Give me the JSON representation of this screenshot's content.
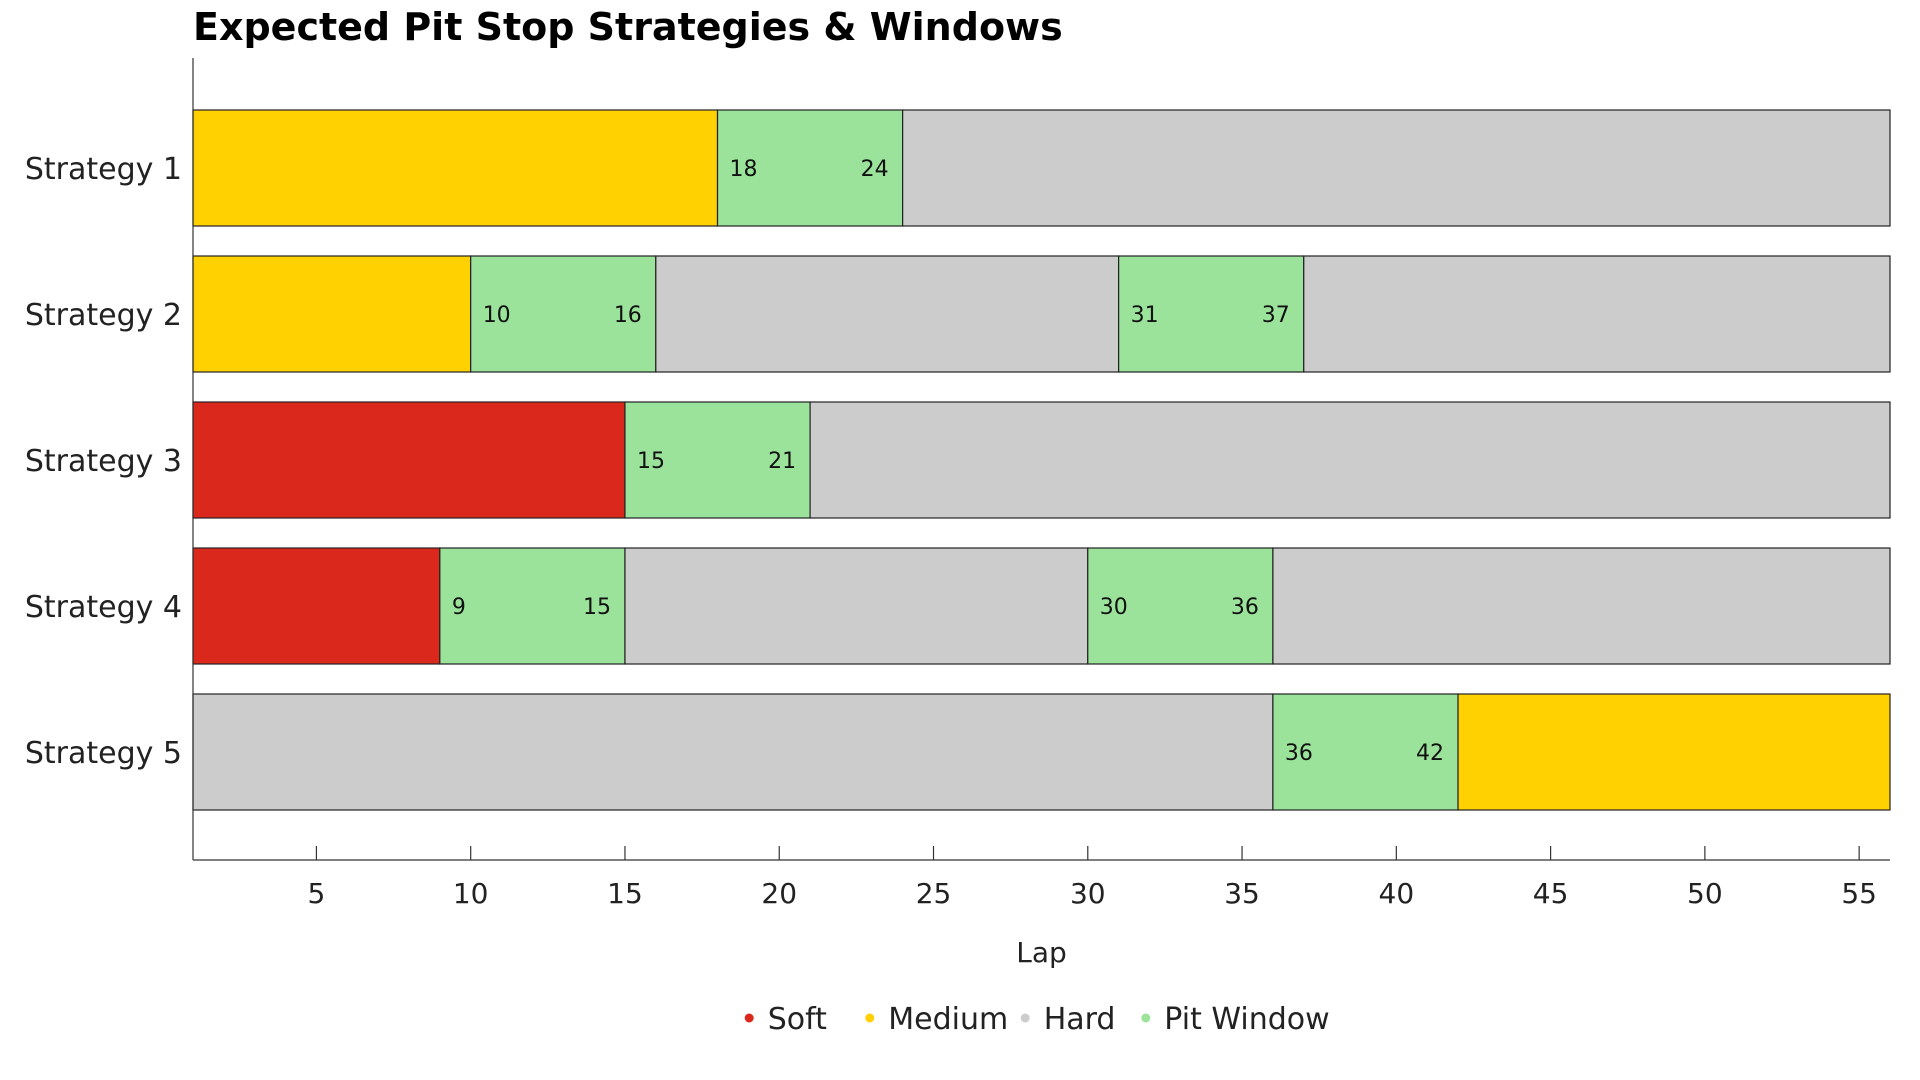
{
  "chart_data": {
    "type": "bar",
    "orientation": "horizontal-stacked-gantt",
    "title": "Expected Pit Stop Strategies & Windows",
    "xlabel": "Lap",
    "ylabel": "",
    "xlim": [
      1,
      56
    ],
    "xticks": [
      "5",
      "10",
      "15",
      "20",
      "25",
      "30",
      "35",
      "40",
      "45",
      "50",
      "55"
    ],
    "grid": false,
    "legend_position": "bottom",
    "colors": {
      "Soft": "#da291c",
      "Medium": "#ffd100",
      "Hard": "#cccccc",
      "Pit Window": "#9be39b"
    },
    "legend": [
      "Soft",
      "Medium",
      "Hard",
      "Pit Window"
    ],
    "categories": [
      "Strategy 1",
      "Strategy 2",
      "Strategy 3",
      "Strategy 4",
      "Strategy 5"
    ],
    "strategies": [
      {
        "name": "Strategy 1",
        "segments": [
          {
            "type": "Medium",
            "start": 1,
            "end": 18
          },
          {
            "type": "Pit Window",
            "start": 18,
            "end": 24,
            "start_label": "18",
            "end_label": "24"
          },
          {
            "type": "Hard",
            "start": 24,
            "end": 56
          }
        ]
      },
      {
        "name": "Strategy 2",
        "segments": [
          {
            "type": "Medium",
            "start": 1,
            "end": 10
          },
          {
            "type": "Pit Window",
            "start": 10,
            "end": 16,
            "start_label": "10",
            "end_label": "16"
          },
          {
            "type": "Hard",
            "start": 16,
            "end": 31
          },
          {
            "type": "Pit Window",
            "start": 31,
            "end": 37,
            "start_label": "31",
            "end_label": "37"
          },
          {
            "type": "Hard",
            "start": 37,
            "end": 56
          }
        ]
      },
      {
        "name": "Strategy 3",
        "segments": [
          {
            "type": "Soft",
            "start": 1,
            "end": 15
          },
          {
            "type": "Pit Window",
            "start": 15,
            "end": 21,
            "start_label": "15",
            "end_label": "21"
          },
          {
            "type": "Hard",
            "start": 21,
            "end": 56
          }
        ]
      },
      {
        "name": "Strategy 4",
        "segments": [
          {
            "type": "Soft",
            "start": 1,
            "end": 9
          },
          {
            "type": "Pit Window",
            "start": 9,
            "end": 15,
            "start_label": "9",
            "end_label": "15"
          },
          {
            "type": "Hard",
            "start": 15,
            "end": 30
          },
          {
            "type": "Pit Window",
            "start": 30,
            "end": 36,
            "start_label": "30",
            "end_label": "36"
          },
          {
            "type": "Hard",
            "start": 36,
            "end": 56
          }
        ]
      },
      {
        "name": "Strategy 5",
        "segments": [
          {
            "type": "Hard",
            "start": 1,
            "end": 36
          },
          {
            "type": "Pit Window",
            "start": 36,
            "end": 42,
            "start_label": "36",
            "end_label": "42"
          },
          {
            "type": "Medium",
            "start": 42,
            "end": 56
          }
        ]
      }
    ]
  }
}
